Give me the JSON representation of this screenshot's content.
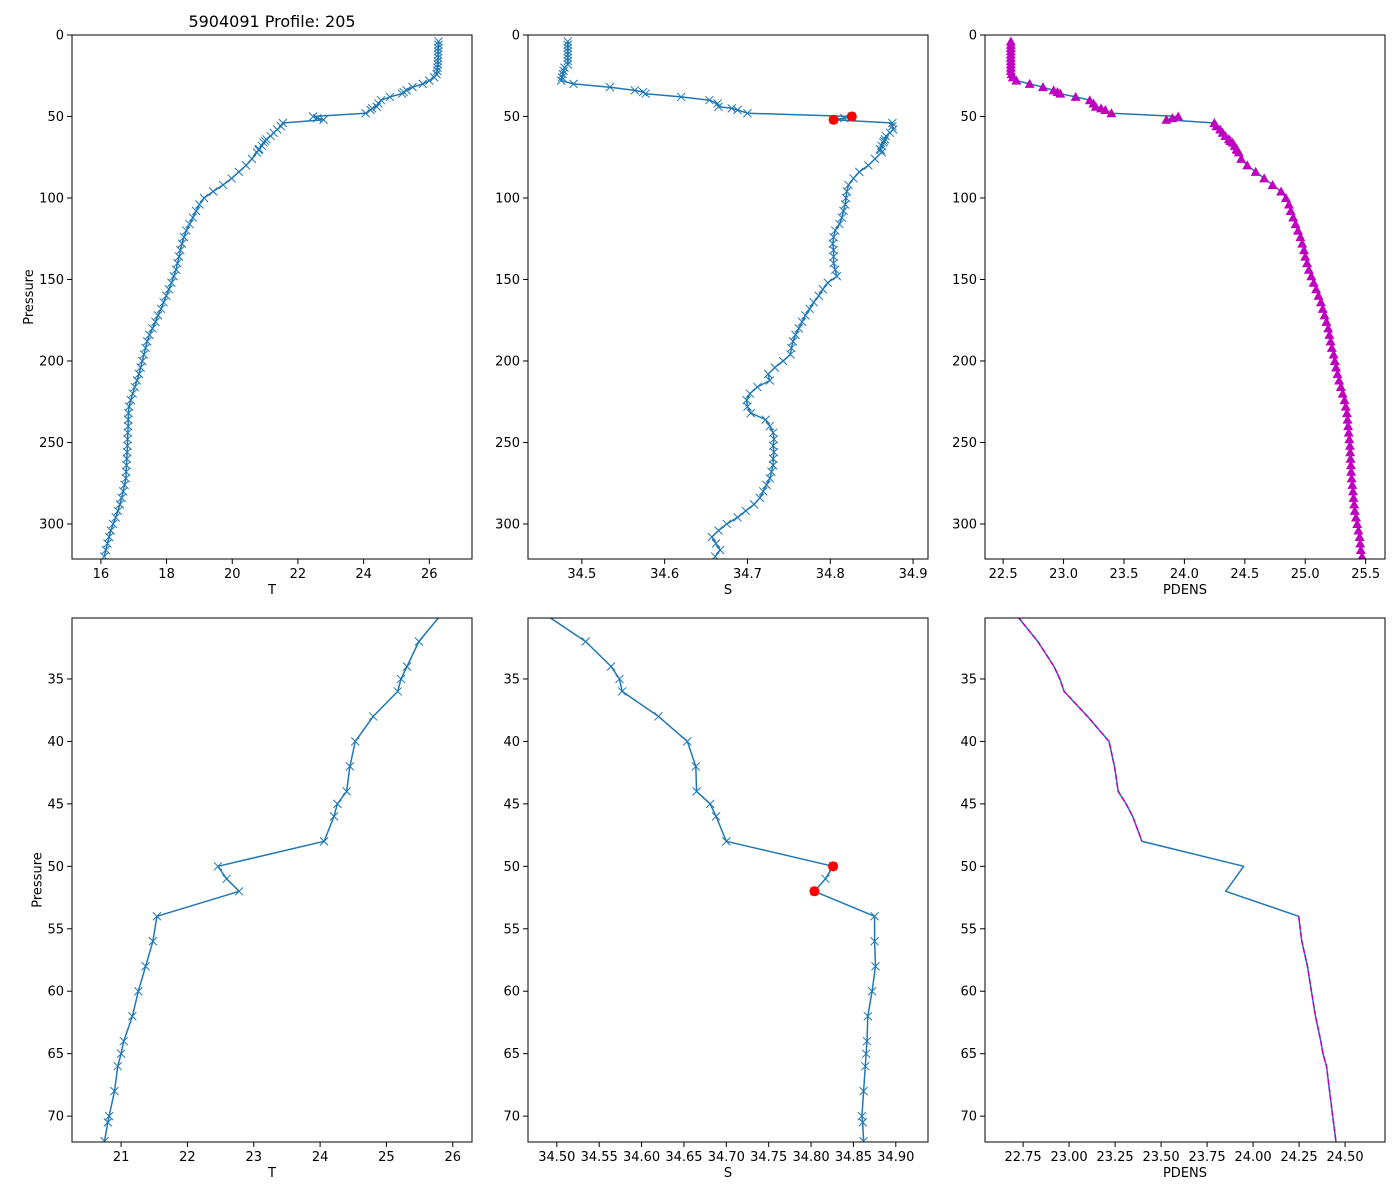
{
  "figure_title": "5904091 Profile: 205",
  "colors": {
    "line": "#1f77b4",
    "pdens": "#bf00bf",
    "flag": "#ff0000",
    "frame": "#000000"
  },
  "profile": {
    "flagged_pressures": [
      50,
      52
    ],
    "pressure": [
      4,
      6,
      8,
      10,
      12,
      14,
      16,
      18,
      20,
      22,
      24,
      26,
      28,
      30,
      32,
      34,
      35,
      36,
      38,
      40,
      42,
      44,
      45,
      46,
      48,
      50,
      51,
      52,
      54,
      56,
      58,
      60,
      62,
      64,
      65,
      66,
      68,
      70,
      70.5,
      72,
      76,
      80,
      84,
      88,
      92,
      96,
      100,
      104,
      108,
      112,
      116,
      120,
      124,
      128,
      132,
      136,
      140,
      144,
      148,
      152,
      156,
      160,
      164,
      168,
      172,
      176,
      180,
      184,
      188,
      192,
      196,
      200,
      204,
      208,
      212,
      216,
      220,
      224,
      228,
      232,
      236,
      240,
      244,
      248,
      252,
      256,
      260,
      264,
      268,
      272,
      276,
      280,
      284,
      288,
      292,
      296,
      300,
      304,
      308,
      312,
      316,
      320
    ],
    "T": [
      26.28,
      26.28,
      26.27,
      26.27,
      26.27,
      26.27,
      26.26,
      26.26,
      26.25,
      26.24,
      26.22,
      26.15,
      26.0,
      25.8,
      25.49,
      25.31,
      25.22,
      25.17,
      24.8,
      24.53,
      24.45,
      24.4,
      24.26,
      24.21,
      24.06,
      22.46,
      22.59,
      22.78,
      21.54,
      21.48,
      21.37,
      21.26,
      21.17,
      21.04,
      21.0,
      20.95,
      20.9,
      20.82,
      20.8,
      20.75,
      20.6,
      20.42,
      20.2,
      19.98,
      19.72,
      19.42,
      19.14,
      19.0,
      18.9,
      18.8,
      18.7,
      18.6,
      18.53,
      18.47,
      18.42,
      18.38,
      18.33,
      18.29,
      18.22,
      18.15,
      18.07,
      17.99,
      17.91,
      17.83,
      17.74,
      17.66,
      17.57,
      17.48,
      17.41,
      17.36,
      17.31,
      17.26,
      17.21,
      17.16,
      17.1,
      17.03,
      16.97,
      16.91,
      16.86,
      16.84,
      16.83,
      16.83,
      16.82,
      16.81,
      16.81,
      16.8,
      16.79,
      16.78,
      16.77,
      16.76,
      16.72,
      16.68,
      16.63,
      16.58,
      16.52,
      16.45,
      16.37,
      16.3,
      16.25,
      16.2,
      16.15,
      16.1
    ],
    "S": [
      34.483,
      34.483,
      34.483,
      34.483,
      34.483,
      34.483,
      34.483,
      34.483,
      34.479,
      34.478,
      34.477,
      34.476,
      34.475,
      34.49,
      34.534,
      34.564,
      34.574,
      34.577,
      34.62,
      34.654,
      34.664,
      34.665,
      34.681,
      34.688,
      34.7,
      34.826,
      34.817,
      34.804,
      34.875,
      34.875,
      34.876,
      34.872,
      34.867,
      34.866,
      34.865,
      34.864,
      34.862,
      34.86,
      34.861,
      34.862,
      34.854,
      34.846,
      34.835,
      34.828,
      34.822,
      34.82,
      34.819,
      34.818,
      34.816,
      34.814,
      34.811,
      34.806,
      34.804,
      34.803,
      34.804,
      34.804,
      34.804,
      34.806,
      34.808,
      34.797,
      34.791,
      34.786,
      34.78,
      34.775,
      34.77,
      34.766,
      34.762,
      34.758,
      34.755,
      34.753,
      34.752,
      34.743,
      34.733,
      34.725,
      34.727,
      34.712,
      34.703,
      34.699,
      34.7,
      34.704,
      34.722,
      34.727,
      34.731,
      34.732,
      34.731,
      34.732,
      34.731,
      34.731,
      34.729,
      34.727,
      34.723,
      34.719,
      34.715,
      34.708,
      34.698,
      34.688,
      34.675,
      34.665,
      34.657,
      34.662,
      34.667,
      34.661
    ],
    "PDENS": [
      22.564,
      22.564,
      22.564,
      22.564,
      22.564,
      22.564,
      22.564,
      22.564,
      22.564,
      22.564,
      22.57,
      22.58,
      22.61,
      22.72,
      22.83,
      22.918,
      22.95,
      22.973,
      23.1,
      23.217,
      23.247,
      23.267,
      23.31,
      23.346,
      23.396,
      23.949,
      23.9,
      23.851,
      24.248,
      24.265,
      24.296,
      24.317,
      24.339,
      24.368,
      24.38,
      24.399,
      24.416,
      24.433,
      24.437,
      24.45,
      24.47,
      24.52,
      24.59,
      24.66,
      24.73,
      24.8,
      24.84,
      24.865,
      24.88,
      24.9,
      24.92,
      24.94,
      24.96,
      24.975,
      24.99,
      25.0,
      25.015,
      25.03,
      25.05,
      25.07,
      25.09,
      25.11,
      25.13,
      25.145,
      25.16,
      25.175,
      25.19,
      25.2,
      25.21,
      25.22,
      25.235,
      25.245,
      25.255,
      25.267,
      25.28,
      25.295,
      25.31,
      25.325,
      25.335,
      25.345,
      25.35,
      25.355,
      25.36,
      25.365,
      25.37,
      25.372,
      25.375,
      25.378,
      25.38,
      25.384,
      25.39,
      25.395,
      25.4,
      25.405,
      25.41,
      25.42,
      25.43,
      25.44,
      25.45,
      25.455,
      25.46,
      25.47
    ]
  },
  "chart_data": [
    {
      "type": "line",
      "name": "T-full",
      "xvar": "T",
      "xlabel": "T",
      "ylabel": "Pressure",
      "xlim": [
        15.12,
        27.3
      ],
      "ylim": [
        0,
        321.5
      ],
      "xticks": [
        16,
        18,
        20,
        22,
        24,
        26
      ],
      "xticklabels": [
        "16",
        "18",
        "20",
        "22",
        "24",
        "26"
      ],
      "yticks": [
        0,
        50,
        100,
        150,
        200,
        250,
        300
      ],
      "yticklabels": [
        "0",
        "50",
        "100",
        "150",
        "200",
        "250",
        "300"
      ],
      "series": [
        {
          "var": "T",
          "style": "line-x"
        }
      ]
    },
    {
      "type": "line",
      "name": "S-full",
      "xvar": "S",
      "xlabel": "S",
      "ylabel": "",
      "xlim": [
        34.435,
        34.918
      ],
      "ylim": [
        0,
        321.5
      ],
      "xticks": [
        34.5,
        34.6,
        34.7,
        34.8,
        34.9
      ],
      "xticklabels": [
        "34.5",
        "34.6",
        "34.7",
        "34.8",
        "34.9"
      ],
      "yticks": [
        0,
        50,
        100,
        150,
        200,
        250,
        300
      ],
      "yticklabels": [
        "0",
        "50",
        "100",
        "150",
        "200",
        "250",
        "300"
      ],
      "series": [
        {
          "var": "S",
          "style": "line-x"
        },
        {
          "var": "S",
          "style": "flag-dots"
        }
      ]
    },
    {
      "type": "line",
      "name": "PDENS-full",
      "xvar": "PDENS",
      "xlabel": "PDENS",
      "ylabel": "",
      "xlim": [
        22.35,
        25.66
      ],
      "ylim": [
        0,
        321.5
      ],
      "xticks": [
        22.5,
        23,
        23.5,
        24,
        24.5,
        25,
        25.5
      ],
      "xticklabels": [
        "22.5",
        "23.0",
        "23.5",
        "24.0",
        "24.5",
        "25.0",
        "25.5"
      ],
      "yticks": [
        0,
        50,
        100,
        150,
        200,
        250,
        300
      ],
      "yticklabels": [
        "0",
        "50",
        "100",
        "150",
        "200",
        "250",
        "300"
      ],
      "series": [
        {
          "var": "PDENS",
          "style": "line"
        },
        {
          "var": "PDENS",
          "style": "triangles"
        }
      ]
    },
    {
      "type": "line",
      "name": "T-zoom",
      "xvar": "T",
      "xlabel": "T",
      "ylabel": "Pressure",
      "xlim": [
        20.26,
        26.29
      ],
      "ylim": [
        30.12,
        72.07
      ],
      "xticks": [
        21,
        22,
        23,
        24,
        25,
        26
      ],
      "xticklabels": [
        "21",
        "22",
        "23",
        "24",
        "25",
        "26"
      ],
      "yticks": [
        35,
        40,
        45,
        50,
        55,
        60,
        65,
        70
      ],
      "yticklabels": [
        "35",
        "40",
        "45",
        "50",
        "55",
        "60",
        "65",
        "70"
      ],
      "series": [
        {
          "var": "T",
          "style": "line-x"
        }
      ]
    },
    {
      "type": "line",
      "name": "S-zoom",
      "xvar": "S",
      "xlabel": "S",
      "ylabel": "",
      "xlim": [
        34.466,
        34.938
      ],
      "ylim": [
        30.12,
        72.07
      ],
      "xticks": [
        34.5,
        34.55,
        34.6,
        34.65,
        34.7,
        34.75,
        34.8,
        34.85,
        34.9
      ],
      "xticklabels": [
        "34.50",
        "34.55",
        "34.60",
        "34.65",
        "34.70",
        "34.75",
        "34.80",
        "34.85",
        "34.90"
      ],
      "yticks": [
        35,
        40,
        45,
        50,
        55,
        60,
        65,
        70
      ],
      "yticklabels": [
        "35",
        "40",
        "45",
        "50",
        "55",
        "60",
        "65",
        "70"
      ],
      "series": [
        {
          "var": "S",
          "style": "line-x"
        },
        {
          "var": "S",
          "style": "flag-dots"
        }
      ]
    },
    {
      "type": "line",
      "name": "PDENS-zoom",
      "xvar": "PDENS",
      "xlabel": "PDENS",
      "ylabel": "",
      "xlim": [
        22.543,
        24.717
      ],
      "ylim": [
        30.12,
        72.07
      ],
      "xticks": [
        22.75,
        23,
        23.25,
        23.5,
        23.75,
        24,
        24.25,
        24.5
      ],
      "xticklabels": [
        "22.75",
        "23.00",
        "23.25",
        "23.50",
        "23.75",
        "24.00",
        "24.25",
        "24.50"
      ],
      "yticks": [
        35,
        40,
        45,
        50,
        55,
        60,
        65,
        70
      ],
      "yticklabels": [
        "35",
        "40",
        "45",
        "50",
        "55",
        "60",
        "65",
        "70"
      ],
      "series": [
        {
          "var": "PDENS",
          "style": "line"
        },
        {
          "var": "PDENS",
          "style": "dashed-unflagged"
        }
      ]
    }
  ]
}
